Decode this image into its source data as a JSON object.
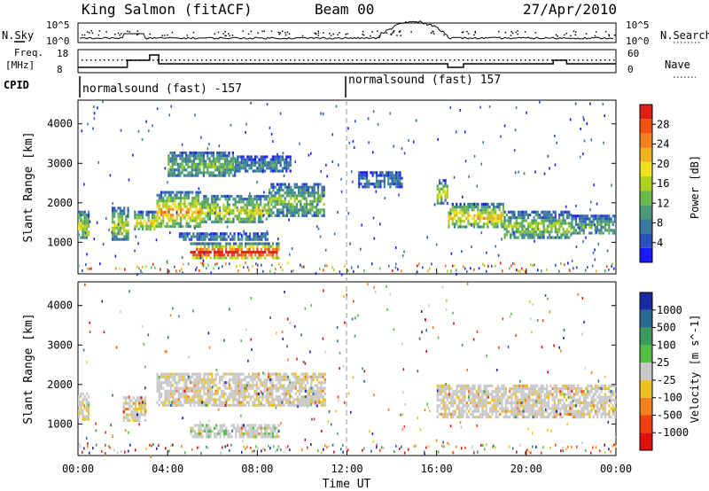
{
  "header": {
    "station": "King Salmon (fitACF)",
    "beam": "Beam 00",
    "date": "27/Apr/2010"
  },
  "noise_panel": {
    "left_label": "N.Sky",
    "right_label": "N.Search",
    "left_ticks": [
      "10^5",
      "10^0"
    ],
    "right_ticks": [
      "10^5",
      "10^0"
    ]
  },
  "freq_panel": {
    "left_label_1": "Freq.",
    "left_label_2": "[MHz]",
    "right_label": "Nave",
    "left_ticks": [
      "18",
      "8"
    ],
    "right_ticks": [
      "60",
      "0"
    ]
  },
  "cpid": {
    "label": "CPID",
    "segments": [
      {
        "text": "normalsound (fast) -157",
        "start_hour": 0
      },
      {
        "text": "normalsound (fast) 157",
        "start_hour": 12
      }
    ]
  },
  "chart_data": [
    {
      "type": "heatmap",
      "title": "Power",
      "ylabel": "Slant Range [km]",
      "xlabel": "Time UT",
      "x_ticks": [
        "00:00",
        "04:00",
        "08:00",
        "12:00",
        "16:00",
        "20:00",
        "00:00"
      ],
      "y_ticks": [
        1000,
        2000,
        3000,
        4000
      ],
      "ylim": [
        200,
        4600
      ],
      "xlim_hours": [
        0,
        24
      ],
      "colorbar": {
        "label": "Power [dB]",
        "ticks": [
          "4",
          "8",
          "12",
          "16",
          "20",
          "24",
          "28"
        ],
        "colors": [
          "#1a1aff",
          "#2a52b8",
          "#3a7aa0",
          "#4a9a78",
          "#6ab84a",
          "#b0d020",
          "#f0e020",
          "#f0b020",
          "#f08020",
          "#f05010",
          "#e02010"
        ]
      },
      "bands": [
        {
          "t0": 0.0,
          "t1": 0.5,
          "r0": 1100,
          "r1": 1800,
          "level": 0.45
        },
        {
          "t0": 1.5,
          "t1": 2.2,
          "r0": 1100,
          "r1": 1900,
          "level": 0.4
        },
        {
          "t0": 2.5,
          "t1": 3.5,
          "r0": 1300,
          "r1": 1800,
          "level": 0.5
        },
        {
          "t0": 3.5,
          "t1": 5.5,
          "r0": 1400,
          "r1": 2300,
          "level": 0.6
        },
        {
          "t0": 5.5,
          "t1": 8.5,
          "r0": 1500,
          "r1": 2200,
          "level": 0.45
        },
        {
          "t0": 8.5,
          "t1": 11.0,
          "r0": 1700,
          "r1": 2500,
          "level": 0.3
        },
        {
          "t0": 4.0,
          "t1": 7.0,
          "r0": 2700,
          "r1": 3300,
          "level": 0.3
        },
        {
          "t0": 7.0,
          "t1": 9.5,
          "r0": 2800,
          "r1": 3200,
          "level": 0.15
        },
        {
          "t0": 5.0,
          "t1": 9.0,
          "r0": 600,
          "r1": 1000,
          "level": 0.95
        },
        {
          "t0": 4.5,
          "t1": 8.5,
          "r0": 1050,
          "r1": 1250,
          "level": 0.15
        },
        {
          "t0": 12.5,
          "t1": 14.5,
          "r0": 2400,
          "r1": 2800,
          "level": 0.1
        },
        {
          "t0": 16.0,
          "t1": 16.5,
          "r0": 2000,
          "r1": 2600,
          "level": 0.45
        },
        {
          "t0": 16.5,
          "t1": 19.0,
          "r0": 1400,
          "r1": 2000,
          "level": 0.55
        },
        {
          "t0": 19.0,
          "t1": 22.0,
          "r0": 1100,
          "r1": 1800,
          "level": 0.35
        },
        {
          "t0": 22.0,
          "t1": 24.0,
          "r0": 1200,
          "r1": 1700,
          "level": 0.25
        }
      ]
    },
    {
      "type": "heatmap",
      "title": "Velocity",
      "ylabel": "Slant Range [km]",
      "xlabel": "Time UT",
      "x_ticks": [
        "00:00",
        "04:00",
        "08:00",
        "12:00",
        "16:00",
        "20:00",
        "00:00"
      ],
      "y_ticks": [
        1000,
        2000,
        3000,
        4000
      ],
      "ylim": [
        200,
        4600
      ],
      "xlim_hours": [
        0,
        24
      ],
      "colorbar": {
        "label": "Velocity [m s^-1]",
        "ticks": [
          "1000",
          "500",
          "100",
          "25",
          "-25",
          "-100",
          "-500",
          "-1000"
        ],
        "colors": [
          "#1a2aa0",
          "#2a6a90",
          "#3a9a60",
          "#50c040",
          "#c8c8c8",
          "#f0c020",
          "#f08020",
          "#f04010",
          "#e01010"
        ]
      },
      "bands": [
        {
          "t0": 0.0,
          "t1": 0.5,
          "r0": 1100,
          "r1": 1800,
          "level": 0.5
        },
        {
          "t0": 2.0,
          "t1": 3.0,
          "r0": 1100,
          "r1": 1700,
          "level": 0.5
        },
        {
          "t0": 3.5,
          "t1": 11.0,
          "r0": 1500,
          "r1": 2300,
          "level": 0.5
        },
        {
          "t0": 5.0,
          "t1": 9.0,
          "r0": 700,
          "r1": 1000,
          "level": 0.6
        },
        {
          "t0": 16.0,
          "t1": 24.0,
          "r0": 1200,
          "r1": 2000,
          "level": 0.5
        }
      ]
    }
  ]
}
